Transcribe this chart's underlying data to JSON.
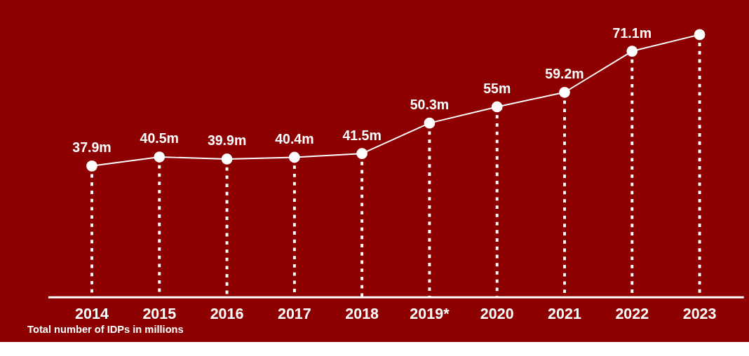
{
  "chart_data": {
    "type": "line",
    "categories": [
      "2014",
      "2015",
      "2016",
      "2017",
      "2018",
      "2019*",
      "2020",
      "2021",
      "2022",
      "2023"
    ],
    "series": [
      {
        "color": "#ffffff",
        "values": [
          37.9,
          40.5,
          39.9,
          40.4,
          41.5,
          50.3,
          55,
          59.2,
          71.1,
          75.9
        ],
        "value_labels": [
          "37.9m",
          "40.5m",
          "39.9m",
          "40.4m",
          "41.5m",
          "50.3m",
          "55m",
          "59.2m",
          "71.1m",
          null
        ]
      }
    ],
    "marker": "circle",
    "line_style": "solid",
    "grid": "x",
    "annotations": [
      "Total number of IDPs in millions"
    ]
  }
}
